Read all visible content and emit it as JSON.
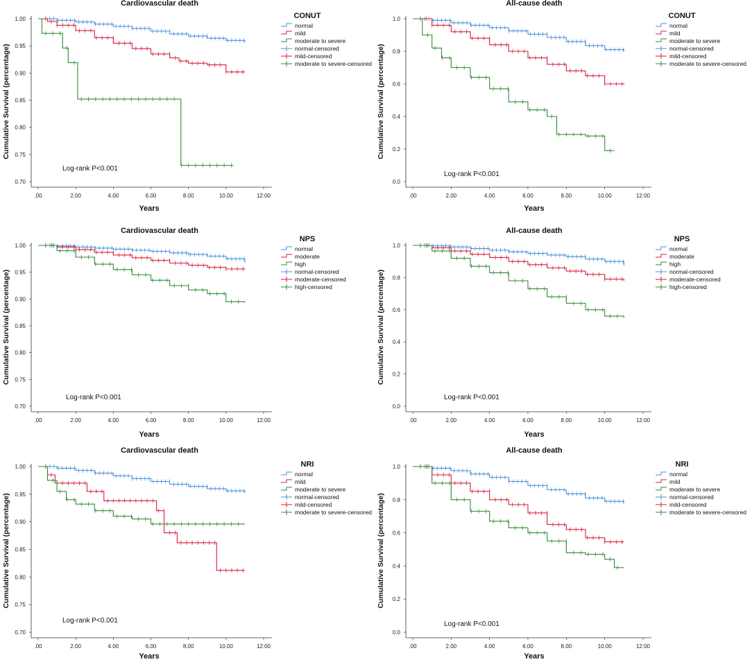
{
  "chart_data": [
    {
      "type": "line",
      "title": "Cardiovascular death",
      "xlabel": "Years",
      "ylabel": "Cumulative Survival (percentage)",
      "xticks": [
        ".00",
        "2.00",
        "4.00",
        "6.00",
        "8.00",
        "10.00",
        "12:00"
      ],
      "yticks": [
        "0.70",
        "0.75",
        "0.80",
        "0.85",
        "0.90",
        "0.95",
        "1.00"
      ],
      "xlim": [
        0,
        12
      ],
      "ylim": [
        0.7,
        1.0
      ],
      "legend_title": "CONUT",
      "legend": [
        "normal",
        "mild",
        "moderate to severe",
        "normal-censored",
        "mild-censored",
        "moderate to severe-censored"
      ],
      "annotation": "Log-rank P<0.001",
      "series": [
        {
          "name": "normal",
          "color": "#4a90d9",
          "x": [
            0,
            1,
            2,
            3,
            4,
            5,
            6,
            7,
            8,
            9,
            10,
            11
          ],
          "y": [
            1.0,
            0.997,
            0.994,
            0.99,
            0.986,
            0.982,
            0.977,
            0.972,
            0.968,
            0.964,
            0.96,
            0.957
          ]
        },
        {
          "name": "mild",
          "color": "#d81b3c",
          "x": [
            0,
            0.5,
            1,
            2,
            3,
            4,
            5,
            6,
            7,
            7.5,
            8,
            9,
            10,
            11
          ],
          "y": [
            1.0,
            0.995,
            0.988,
            0.978,
            0.965,
            0.955,
            0.945,
            0.935,
            0.928,
            0.922,
            0.918,
            0.915,
            0.902,
            0.902
          ]
        },
        {
          "name": "moderate to severe",
          "color": "#2e8b2e",
          "x": [
            0,
            0.2,
            1.0,
            1.3,
            1.6,
            2.1,
            7.6,
            10.4
          ],
          "y": [
            1.0,
            0.973,
            0.973,
            0.946,
            0.919,
            0.852,
            0.73,
            0.73
          ]
        }
      ]
    },
    {
      "type": "line",
      "title": "All-cause death",
      "xlabel": "Years",
      "ylabel": "Cumulative Survival (percentage)",
      "xticks": [
        ".00",
        "2.00",
        "4.00",
        "6.00",
        "8.00",
        "10.00",
        "12:00"
      ],
      "yticks": [
        "0.0",
        "0.2",
        "0.4",
        "0.6",
        "0.8",
        "1.0"
      ],
      "xlim": [
        0,
        12
      ],
      "ylim": [
        0.0,
        1.0
      ],
      "legend_title": "CONUT",
      "legend": [
        "normal",
        "mild",
        "moderate to severe",
        "normal-censored",
        "mild-censored",
        "moderate to severe-censored"
      ],
      "annotation": "Log-rank P<0.001",
      "series": [
        {
          "name": "normal",
          "color": "#4a90d9",
          "x": [
            0,
            1,
            2,
            3,
            4,
            5,
            6,
            7,
            8,
            9,
            10,
            11
          ],
          "y": [
            1.0,
            0.99,
            0.975,
            0.96,
            0.945,
            0.925,
            0.905,
            0.885,
            0.86,
            0.835,
            0.81,
            0.8
          ]
        },
        {
          "name": "mild",
          "color": "#d81b3c",
          "x": [
            0,
            1,
            2,
            3,
            4,
            5,
            6,
            7,
            8,
            9,
            10,
            11
          ],
          "y": [
            1.0,
            0.96,
            0.92,
            0.88,
            0.84,
            0.8,
            0.76,
            0.72,
            0.68,
            0.65,
            0.6,
            0.595
          ]
        },
        {
          "name": "moderate to severe",
          "color": "#2e8b2e",
          "x": [
            0,
            0.5,
            1,
            1.5,
            2,
            3,
            4,
            5,
            6,
            7,
            7.5,
            9,
            10,
            10.5
          ],
          "y": [
            1.0,
            0.9,
            0.82,
            0.76,
            0.7,
            0.64,
            0.57,
            0.49,
            0.44,
            0.4,
            0.29,
            0.28,
            0.19,
            0.19
          ]
        }
      ]
    },
    {
      "type": "line",
      "title": "Cardiovascular death",
      "xlabel": "Years",
      "ylabel": "Cumulative Survival (percentage)",
      "xticks": [
        ".00",
        "2.00",
        "4.00",
        "6.00",
        "8.00",
        "10.00",
        "12:00"
      ],
      "yticks": [
        "0.70",
        "0.75",
        "0.80",
        "0.85",
        "0.90",
        "0.95",
        "1.00"
      ],
      "xlim": [
        0,
        12
      ],
      "ylim": [
        0.7,
        1.0
      ],
      "legend_title": "NPS",
      "legend": [
        "normal",
        "moderate",
        "high",
        "normal-censored",
        "moderate-censored",
        "high-censored"
      ],
      "annotation": "Log-rank P<0.001",
      "series": [
        {
          "name": "normal",
          "color": "#4a90d9",
          "x": [
            0,
            1,
            2,
            3,
            4,
            5,
            6,
            7,
            8,
            9,
            10,
            11
          ],
          "y": [
            1.0,
            0.999,
            0.997,
            0.995,
            0.993,
            0.991,
            0.989,
            0.986,
            0.983,
            0.98,
            0.975,
            0.968
          ]
        },
        {
          "name": "moderate",
          "color": "#d81b3c",
          "x": [
            0,
            1,
            2,
            3,
            4,
            5,
            6,
            7,
            8,
            9,
            10,
            11
          ],
          "y": [
            1.0,
            0.997,
            0.992,
            0.987,
            0.982,
            0.977,
            0.972,
            0.967,
            0.963,
            0.959,
            0.956,
            0.955
          ]
        },
        {
          "name": "high",
          "color": "#2e8b2e",
          "x": [
            0,
            1,
            2,
            3,
            4,
            5,
            6,
            7,
            8,
            9,
            10,
            11
          ],
          "y": [
            1.0,
            0.99,
            0.978,
            0.965,
            0.955,
            0.945,
            0.935,
            0.925,
            0.917,
            0.91,
            0.895,
            0.893
          ]
        }
      ]
    },
    {
      "type": "line",
      "title": "All-cause death",
      "xlabel": "Years",
      "ylabel": "Cumulative Survival (percentage)",
      "xticks": [
        ".00",
        "2.00",
        "4.00",
        "6.00",
        "8.00",
        "10.00",
        "12:00"
      ],
      "yticks": [
        "0.0",
        "0.2",
        "0.4",
        "0.6",
        "0.8",
        "1.0"
      ],
      "xlim": [
        0,
        12
      ],
      "ylim": [
        0.0,
        1.0
      ],
      "legend_title": "NPS",
      "legend": [
        "normal",
        "moderate",
        "high",
        "normal-censored",
        "moderate-censored",
        "high-censored"
      ],
      "annotation": "Log-rank P<0.001",
      "series": [
        {
          "name": "normal",
          "color": "#4a90d9",
          "x": [
            0,
            1,
            2,
            3,
            4,
            5,
            6,
            7,
            8,
            9,
            10,
            11
          ],
          "y": [
            1.0,
            0.997,
            0.99,
            0.98,
            0.97,
            0.96,
            0.95,
            0.94,
            0.93,
            0.915,
            0.9,
            0.875
          ]
        },
        {
          "name": "moderate",
          "color": "#d81b3c",
          "x": [
            0,
            1,
            2,
            3,
            4,
            5,
            6,
            7,
            8,
            9,
            10,
            11
          ],
          "y": [
            1.0,
            0.985,
            0.965,
            0.945,
            0.925,
            0.9,
            0.88,
            0.86,
            0.84,
            0.82,
            0.79,
            0.78
          ]
        },
        {
          "name": "high",
          "color": "#2e8b2e",
          "x": [
            0,
            1,
            2,
            3,
            4,
            5,
            6,
            7,
            8,
            9,
            10,
            11
          ],
          "y": [
            1.0,
            0.965,
            0.92,
            0.87,
            0.83,
            0.78,
            0.73,
            0.68,
            0.64,
            0.6,
            0.56,
            0.55
          ]
        }
      ]
    },
    {
      "type": "line",
      "title": "Cardiovascular death",
      "xlabel": "Years",
      "ylabel": "Cumulative Survival (percentage)",
      "xticks": [
        ".00",
        "2.00",
        "4.00",
        "6.00",
        "8.00",
        "10.00",
        "12:00"
      ],
      "yticks": [
        "0.70",
        "0.75",
        "0.80",
        "0.85",
        "0.90",
        "0.95",
        "1.00"
      ],
      "xlim": [
        0,
        12
      ],
      "ylim": [
        0.7,
        1.0
      ],
      "legend_title": "NRI",
      "legend": [
        "normal",
        "mild",
        "moderate to severe",
        "normal-censored",
        "mild-censored",
        "moderate to severe-censored"
      ],
      "annotation": "Log-rank P<0.001",
      "series": [
        {
          "name": "normal",
          "color": "#4a90d9",
          "x": [
            0,
            1,
            2,
            3,
            4,
            5,
            6,
            7,
            8,
            9,
            10,
            11
          ],
          "y": [
            1.0,
            0.997,
            0.993,
            0.988,
            0.983,
            0.978,
            0.973,
            0.968,
            0.964,
            0.96,
            0.956,
            0.953
          ]
        },
        {
          "name": "mild",
          "color": "#d81b3c",
          "x": [
            0,
            0.5,
            0.9,
            2.2,
            2.6,
            3.5,
            6.1,
            6.3,
            6.7,
            7.4,
            9.5,
            11
          ],
          "y": [
            1.0,
            0.985,
            0.97,
            0.97,
            0.955,
            0.938,
            0.938,
            0.92,
            0.88,
            0.862,
            0.812,
            0.812
          ]
        },
        {
          "name": "moderate to severe",
          "color": "#2e8b2e",
          "x": [
            0,
            0.5,
            1,
            1.5,
            2,
            3,
            4,
            5,
            6,
            8,
            11
          ],
          "y": [
            1.0,
            0.975,
            0.955,
            0.94,
            0.932,
            0.92,
            0.91,
            0.905,
            0.896,
            0.896,
            0.896
          ]
        }
      ]
    },
    {
      "type": "line",
      "title": "All-cause death",
      "xlabel": "Years",
      "ylabel": "Cumulative Survival (percentage)",
      "xticks": [
        ".00",
        "2.00",
        "4.00",
        "6.00",
        "8.00",
        "10.00",
        "12:00"
      ],
      "yticks": [
        "0.0",
        "0.2",
        "0.4",
        "0.6",
        "0.8",
        "1.0"
      ],
      "xlim": [
        0,
        12
      ],
      "ylim": [
        0.0,
        1.0
      ],
      "legend_title": "NRI",
      "legend": [
        "normal",
        "mild",
        "moderate to severe",
        "normal-censored",
        "mild-censored",
        "moderate to severe-censored"
      ],
      "annotation": "Log-rank P<0.001",
      "series": [
        {
          "name": "normal",
          "color": "#4a90d9",
          "x": [
            0,
            1,
            2,
            3,
            4,
            5,
            6,
            7,
            8,
            9,
            10,
            11
          ],
          "y": [
            1.0,
            0.99,
            0.975,
            0.955,
            0.935,
            0.91,
            0.885,
            0.86,
            0.835,
            0.81,
            0.79,
            0.78
          ]
        },
        {
          "name": "mild",
          "color": "#d81b3c",
          "x": [
            0,
            1,
            2,
            3,
            4,
            5,
            6,
            7,
            8,
            9,
            10,
            11
          ],
          "y": [
            1.0,
            0.95,
            0.9,
            0.85,
            0.8,
            0.77,
            0.72,
            0.65,
            0.62,
            0.57,
            0.545,
            0.545
          ]
        },
        {
          "name": "moderate to severe",
          "color": "#2e8b2e",
          "x": [
            0,
            1,
            2,
            3,
            4,
            5,
            6,
            7,
            8,
            9,
            10,
            10.5,
            11
          ],
          "y": [
            1.0,
            0.9,
            0.8,
            0.73,
            0.67,
            0.63,
            0.6,
            0.55,
            0.48,
            0.47,
            0.44,
            0.39,
            0.39
          ]
        }
      ]
    }
  ]
}
